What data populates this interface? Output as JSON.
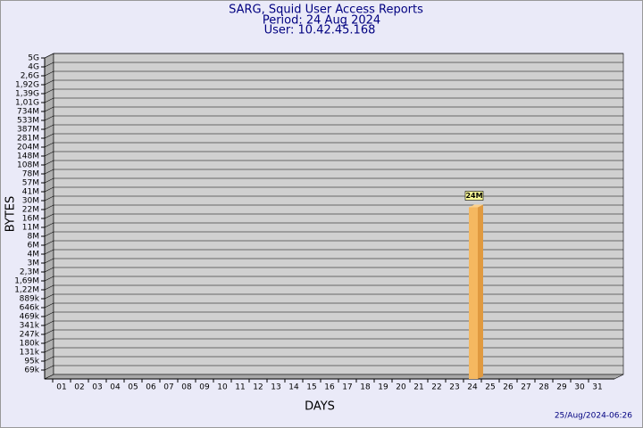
{
  "chart_data": {
    "type": "bar",
    "title": "SARG, Squid User Access Reports",
    "subtitle": [
      "Period: 24 Aug 2024",
      "User: 10.42.45.168"
    ],
    "xlabel": "DAYS",
    "ylabel": "BYTES",
    "footer": "25/Aug/2024-06:26",
    "categories": [
      "01",
      "02",
      "03",
      "04",
      "05",
      "06",
      "07",
      "08",
      "09",
      "10",
      "11",
      "12",
      "13",
      "14",
      "15",
      "16",
      "17",
      "18",
      "19",
      "20",
      "21",
      "22",
      "23",
      "24",
      "25",
      "26",
      "27",
      "28",
      "29",
      "30",
      "31"
    ],
    "values": [
      null,
      null,
      null,
      null,
      null,
      null,
      null,
      null,
      null,
      null,
      null,
      null,
      null,
      null,
      null,
      null,
      null,
      null,
      null,
      null,
      null,
      null,
      null,
      24000000,
      null,
      null,
      null,
      null,
      null,
      null,
      null
    ],
    "value_labels": [
      null,
      null,
      null,
      null,
      null,
      null,
      null,
      null,
      null,
      null,
      null,
      null,
      null,
      null,
      null,
      null,
      null,
      null,
      null,
      null,
      null,
      null,
      null,
      "24M",
      null,
      null,
      null,
      null,
      null,
      null,
      null
    ],
    "color": "#f5b860",
    "ylim": [
      0,
      5000000000
    ],
    "yticks": [
      {
        "value": 5000000000,
        "label": "5G"
      },
      {
        "value": 4000000000,
        "label": "4G"
      },
      {
        "value": 2600000000,
        "label": "2,6G"
      },
      {
        "value": 1920000000,
        "label": "1,92G"
      },
      {
        "value": 1390000000,
        "label": "1,39G"
      },
      {
        "value": 1010000000,
        "label": "1,01G"
      },
      {
        "value": 734000000,
        "label": "734M"
      },
      {
        "value": 533000000,
        "label": "533M"
      },
      {
        "value": 387000000,
        "label": "387M"
      },
      {
        "value": 281000000,
        "label": "281M"
      },
      {
        "value": 204000000,
        "label": "204M"
      },
      {
        "value": 148000000,
        "label": "148M"
      },
      {
        "value": 108000000,
        "label": "108M"
      },
      {
        "value": 78000000,
        "label": "78M"
      },
      {
        "value": 57000000,
        "label": "57M"
      },
      {
        "value": 41000000,
        "label": "41M"
      },
      {
        "value": 30000000,
        "label": "30M"
      },
      {
        "value": 22000000,
        "label": "22M"
      },
      {
        "value": 16000000,
        "label": "16M"
      },
      {
        "value": 11000000,
        "label": "11M"
      },
      {
        "value": 8000000,
        "label": "8M"
      },
      {
        "value": 6000000,
        "label": "6M"
      },
      {
        "value": 4000000,
        "label": "4M"
      },
      {
        "value": 3000000,
        "label": "3M"
      },
      {
        "value": 2300000,
        "label": "2,3M"
      },
      {
        "value": 1690000,
        "label": "1,69M"
      },
      {
        "value": 1220000,
        "label": "1,22M"
      },
      {
        "value": 889000,
        "label": "889k"
      },
      {
        "value": 646000,
        "label": "646k"
      },
      {
        "value": 469000,
        "label": "469k"
      },
      {
        "value": 341000,
        "label": "341k"
      },
      {
        "value": 247000,
        "label": "247k"
      },
      {
        "value": 180000,
        "label": "180k"
      },
      {
        "value": 131000,
        "label": "131k"
      },
      {
        "value": 95000,
        "label": "95k"
      },
      {
        "value": 69000,
        "label": "69k"
      }
    ],
    "grid": true
  }
}
